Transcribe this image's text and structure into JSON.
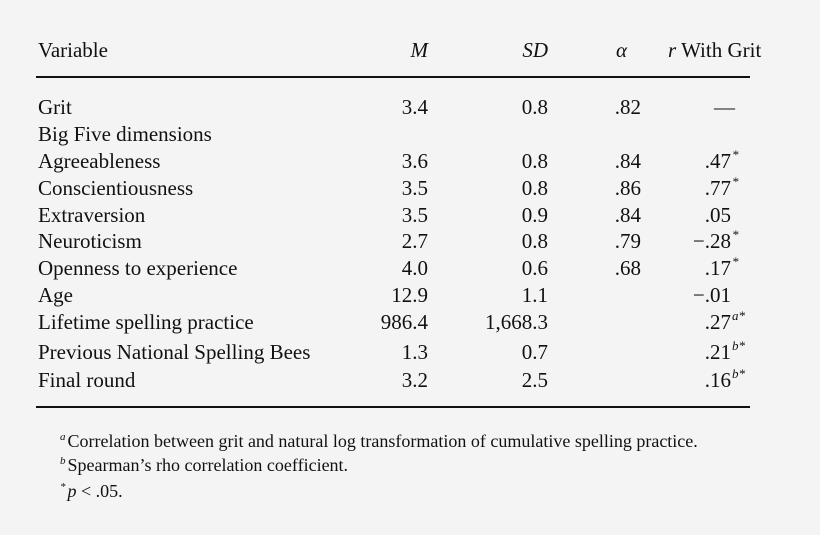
{
  "header": {
    "variable": "Variable",
    "M": "M",
    "SD": "SD",
    "alpha": "α",
    "r_italic": "r",
    "r_rest": "With Grit"
  },
  "rows": [
    {
      "variable": "Grit",
      "M": "3.4",
      "SD": "0.8",
      "alpha": ".82",
      "r": "—"
    },
    {
      "variable": "Big Five dimensions"
    },
    {
      "variable": "Agreeableness",
      "M": "3.6",
      "SD": "0.8",
      "alpha": ".84",
      "r": ".47",
      "r_sup": "*"
    },
    {
      "variable": "Conscientiousness",
      "M": "3.5",
      "SD": "0.8",
      "alpha": ".86",
      "r": ".77",
      "r_sup": "*"
    },
    {
      "variable": "Extraversion",
      "M": "3.5",
      "SD": "0.9",
      "alpha": ".84",
      "r": ".05"
    },
    {
      "variable": "Neuroticism",
      "M": "2.7",
      "SD": "0.8",
      "alpha": ".79",
      "r": "−.28",
      "r_sup": "*"
    },
    {
      "variable": "Openness to experience",
      "M": "4.0",
      "SD": "0.6",
      "alpha": ".68",
      "r": ".17",
      "r_sup": "*"
    },
    {
      "variable": "Age",
      "M": "12.9",
      "SD": "1.1",
      "r": "−.01"
    },
    {
      "variable": "Lifetime spelling practice",
      "M": "986.4",
      "SD": "1,668.3",
      "r": ".27",
      "r_sup": "a*"
    },
    {
      "variable": "Previous National Spelling Bees",
      "M": "1.3",
      "SD": "0.7",
      "r": ".21",
      "r_sup": "b*"
    },
    {
      "variable": "Final round",
      "M": "3.2",
      "SD": "2.5",
      "r": ".16",
      "r_sup": "b*"
    }
  ],
  "footnotes": [
    {
      "mark": "a",
      "text": "Correlation between grit and natural log transformation of cumulative spelling practice."
    },
    {
      "mark": "b",
      "text": "Spearman’s rho correlation coefficient."
    },
    {
      "mark": "*",
      "italic": "p",
      "text": "< .05."
    }
  ]
}
